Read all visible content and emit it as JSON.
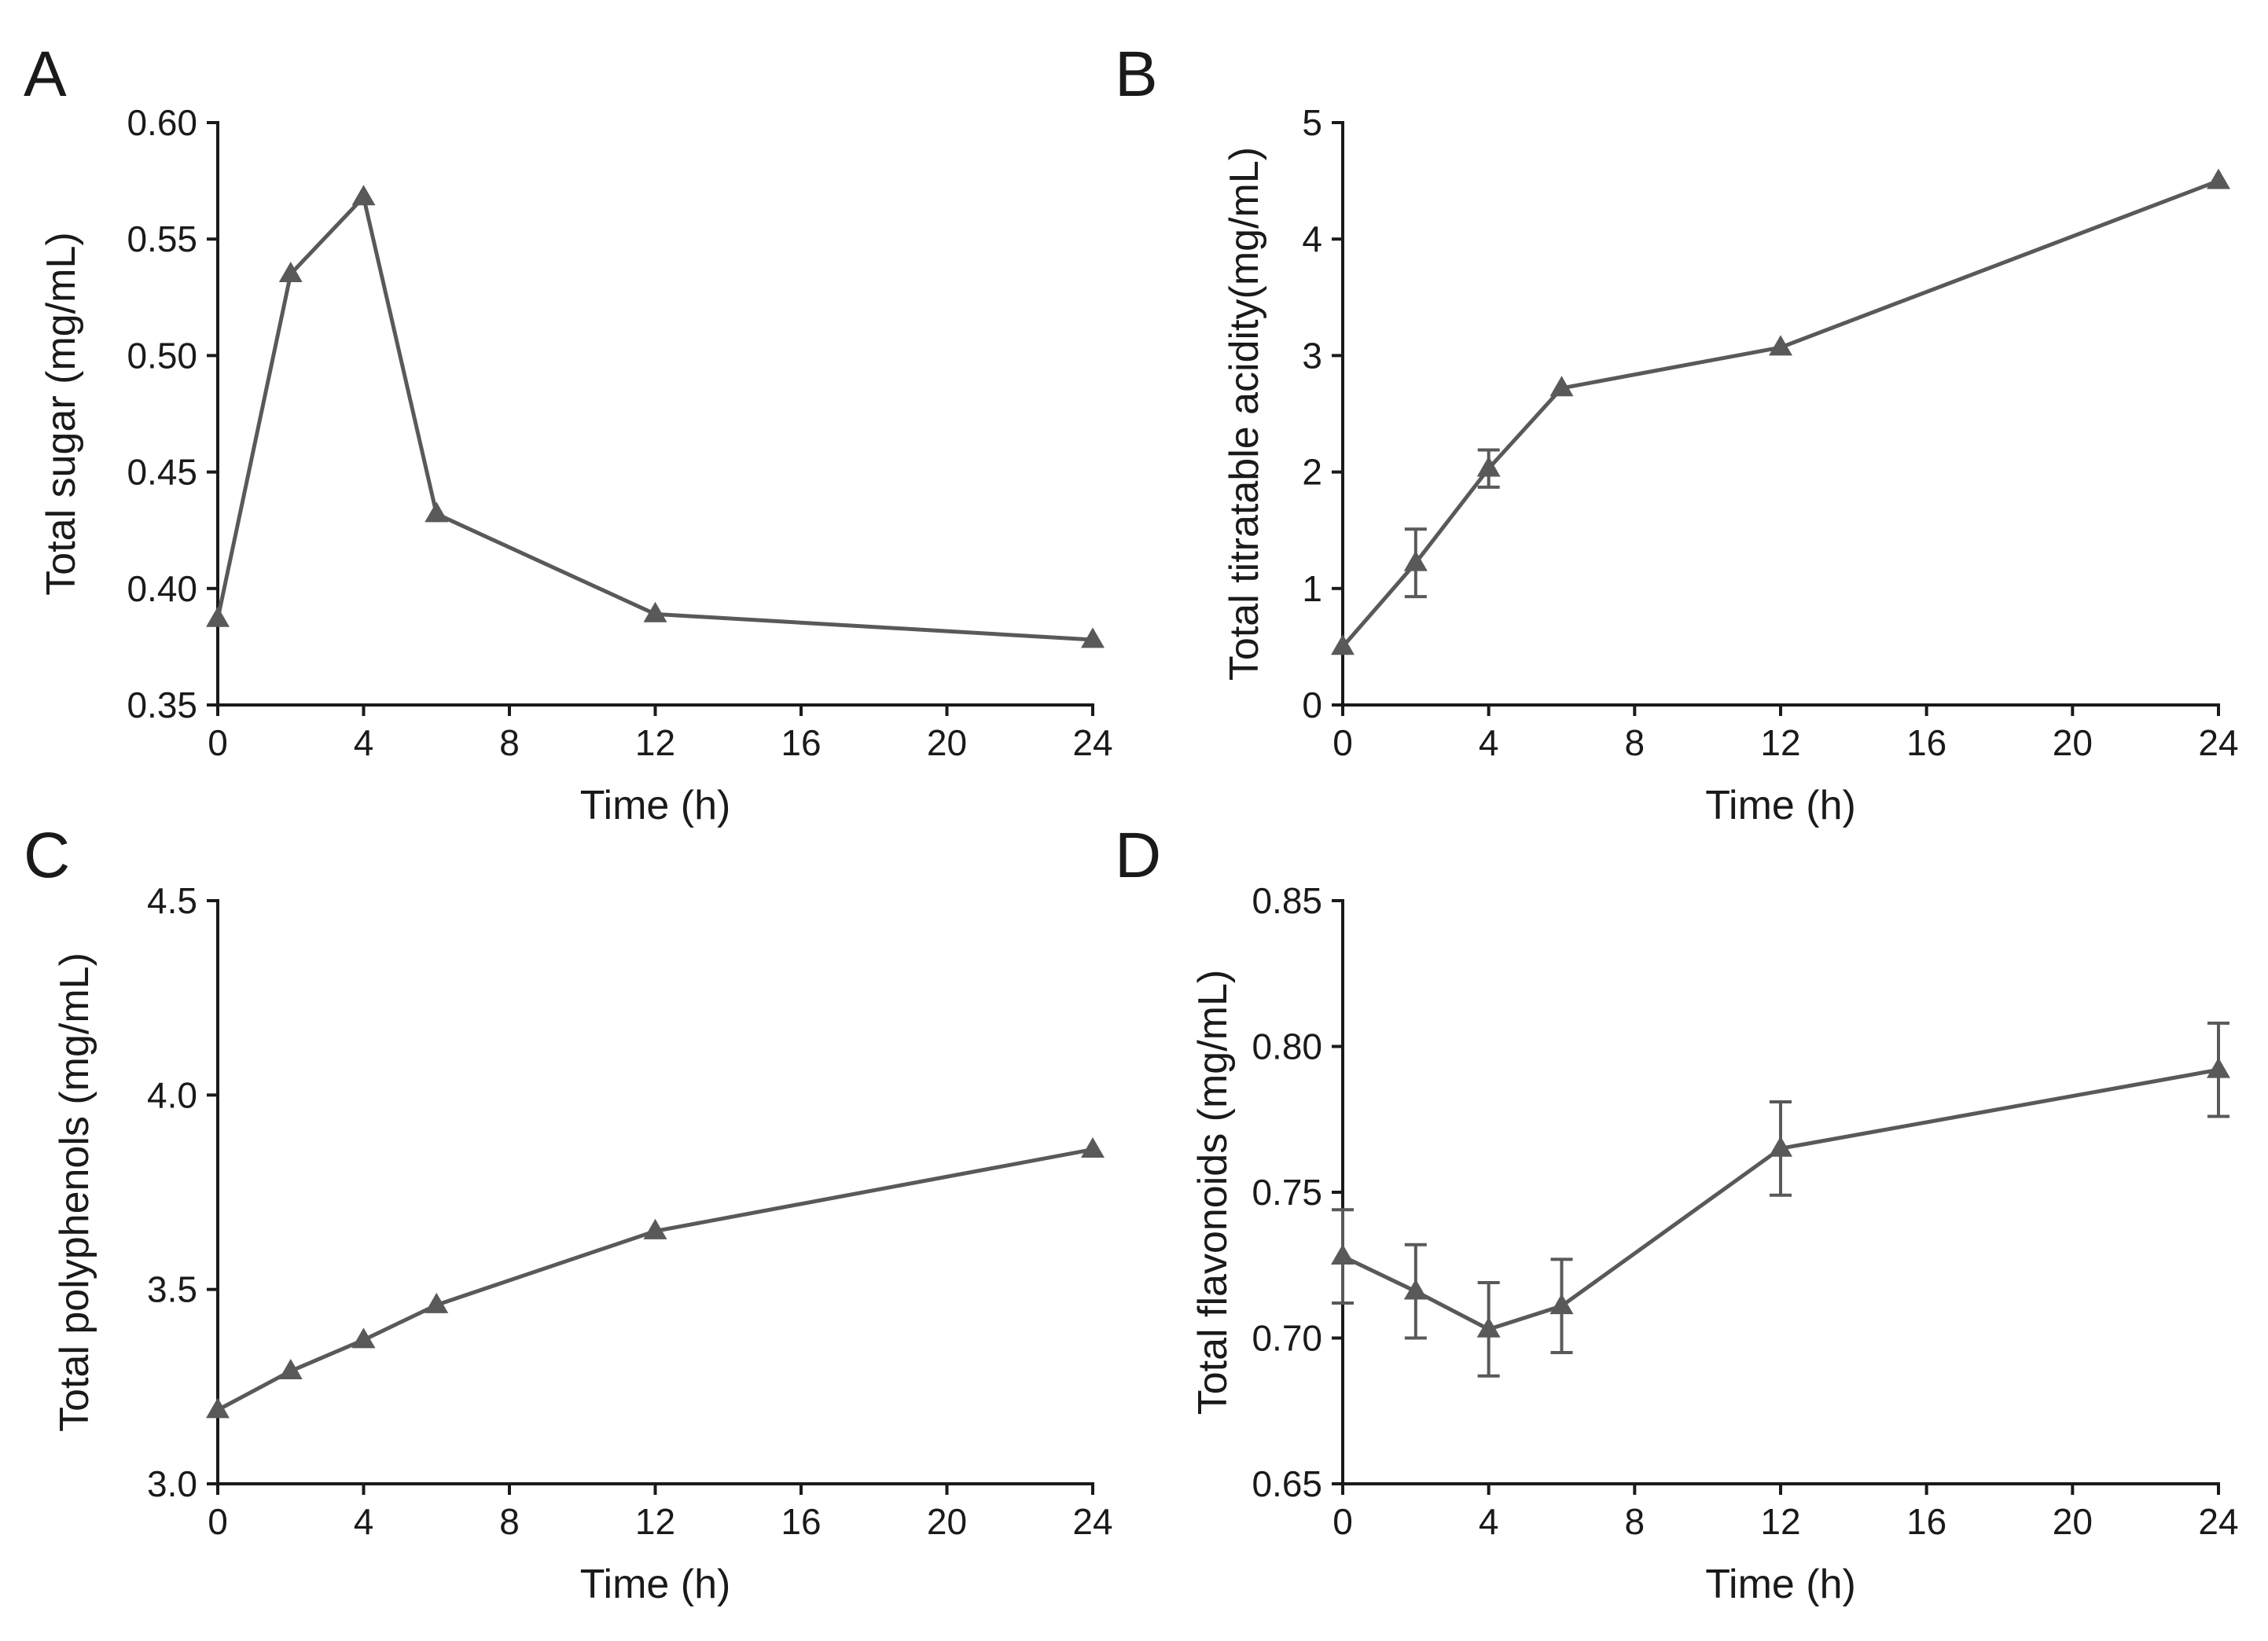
{
  "chart_data": [
    {
      "panel": "A",
      "type": "line",
      "xlabel": "Time (h)",
      "ylabel": "Total sugar (mg/mL)",
      "xlim": [
        0,
        24
      ],
      "ylim": [
        0.35,
        0.6
      ],
      "xticks": [
        "0",
        "4",
        "8",
        "12",
        "16",
        "20",
        "24"
      ],
      "yticks": [
        "0.35",
        "0.40",
        "0.45",
        "0.50",
        "0.55",
        "0.60"
      ],
      "marker": "triangle",
      "color": "#595959",
      "series": [
        {
          "name": "Total sugar",
          "x": [
            0,
            2,
            4,
            6,
            12,
            24
          ],
          "values": [
            0.387,
            0.535,
            0.568,
            0.432,
            0.389,
            0.378
          ],
          "error": [
            0,
            0,
            0,
            0,
            0,
            0
          ]
        }
      ]
    },
    {
      "panel": "B",
      "type": "line",
      "xlabel": "Time (h)",
      "ylabel": "Total titratable acidity(mg/mL)",
      "xlim": [
        0,
        24
      ],
      "ylim": [
        0,
        5
      ],
      "xticks": [
        "0",
        "4",
        "8",
        "12",
        "16",
        "20",
        "24"
      ],
      "yticks": [
        "0",
        "1",
        "2",
        "3",
        "4",
        "5"
      ],
      "marker": "triangle",
      "color": "#595959",
      "series": [
        {
          "name": "Total titratable acidity",
          "x": [
            0,
            2,
            4,
            6,
            12,
            24
          ],
          "values": [
            0.5,
            1.22,
            2.03,
            2.72,
            3.07,
            4.5
          ],
          "error": [
            0,
            0.29,
            0.16,
            0,
            0,
            0
          ]
        }
      ]
    },
    {
      "panel": "C",
      "type": "line",
      "xlabel": "Time (h)",
      "ylabel": "Total polyphenols (mg/mL)",
      "xlim": [
        0,
        24
      ],
      "ylim": [
        3.0,
        4.5
      ],
      "xticks": [
        "0",
        "4",
        "8",
        "12",
        "16",
        "20",
        "24"
      ],
      "yticks": [
        "3.0",
        "3.5",
        "4.0",
        "4.5"
      ],
      "marker": "triangle",
      "color": "#595959",
      "series": [
        {
          "name": "Total polyphenols",
          "x": [
            0,
            2,
            4,
            6,
            12,
            24
          ],
          "values": [
            3.19,
            3.29,
            3.37,
            3.46,
            3.65,
            3.86
          ],
          "error": [
            0,
            0,
            0,
            0,
            0,
            0
          ]
        }
      ]
    },
    {
      "panel": "D",
      "type": "line",
      "xlabel": "Time (h)",
      "ylabel": "Total flavonoids (mg/mL)",
      "xlim": [
        0,
        24
      ],
      "ylim": [
        0.65,
        0.85
      ],
      "xticks": [
        "0",
        "4",
        "8",
        "12",
        "16",
        "20",
        "24"
      ],
      "yticks": [
        "0.65",
        "0.70",
        "0.75",
        "0.80",
        "0.85"
      ],
      "marker": "triangle",
      "color": "#595959",
      "series": [
        {
          "name": "Total flavonoids",
          "x": [
            0,
            2,
            4,
            6,
            12,
            24
          ],
          "values": [
            0.728,
            0.716,
            0.703,
            0.711,
            0.765,
            0.792
          ],
          "error": [
            0.016,
            0.016,
            0.016,
            0.016,
            0.016,
            0.016
          ]
        }
      ]
    }
  ]
}
